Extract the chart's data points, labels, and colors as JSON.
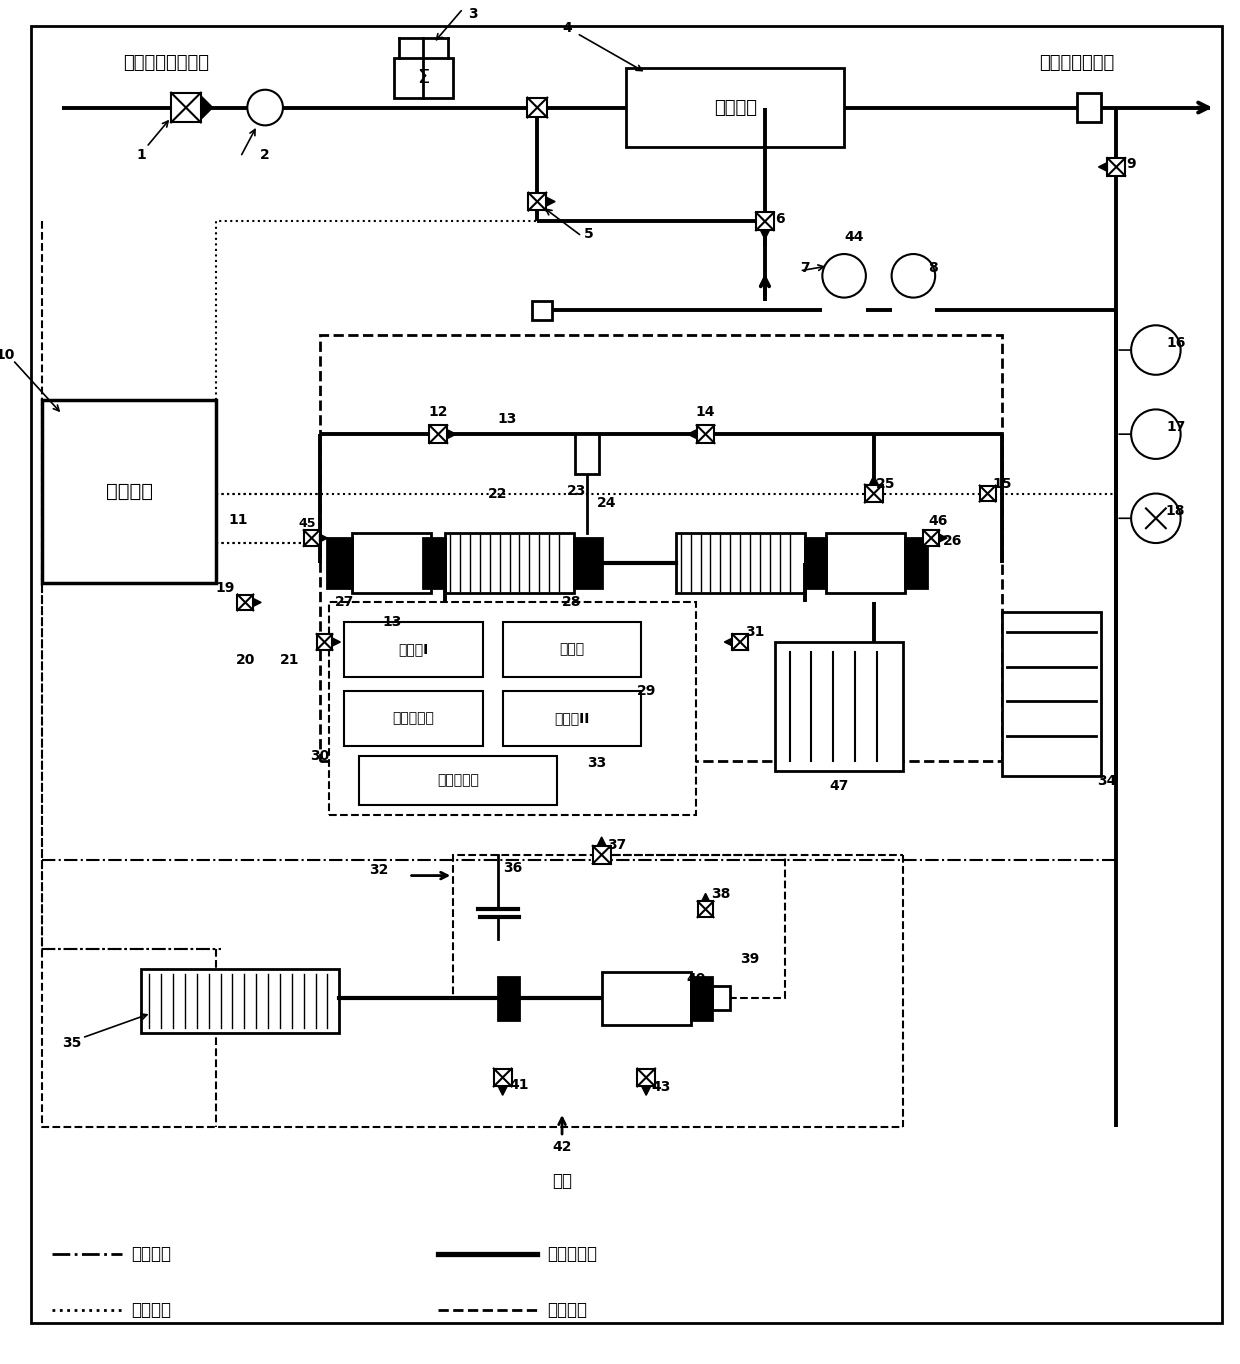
{
  "fig_width": 12.4,
  "fig_height": 13.64,
  "bg_color": "#ffffff",
  "labels": {
    "input_pipe": "输气管（天然气）",
    "output": "天然气发电机组",
    "air": "空气",
    "control_module": "控制模块",
    "pressure_unit": "调压单元",
    "filter1": "滤波器I",
    "converter": "变流器",
    "electricity_sensor": "电量感应器",
    "filter2": "滤波器II",
    "energy_storage": "电能存储器"
  },
  "legend": {
    "dash_dot": "供电通路",
    "solid": "天然气通路",
    "dotted": "控制通路",
    "dashed": "空气通路"
  }
}
